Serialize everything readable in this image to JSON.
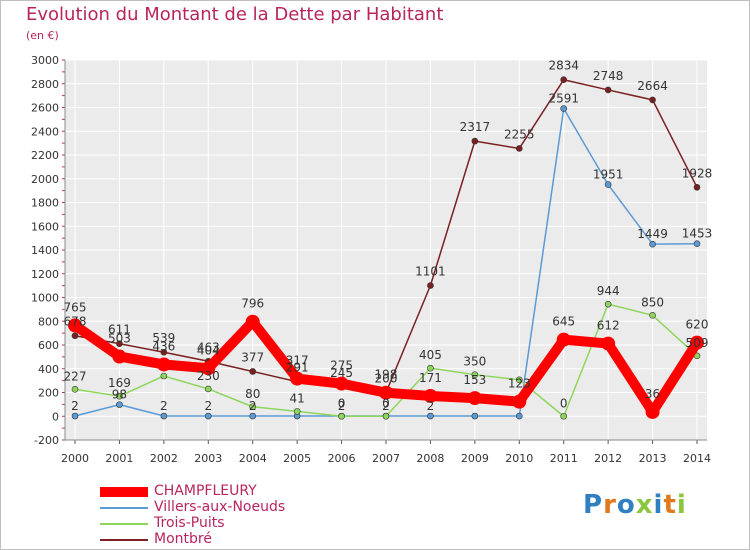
{
  "chart_data": {
    "type": "line",
    "title": "Evolution du Montant de la Dette par Habitant",
    "subtitle": "(en €)",
    "categories": [
      "2000",
      "2001",
      "2002",
      "2003",
      "2004",
      "2005",
      "2006",
      "2007",
      "2008",
      "2009",
      "2010",
      "2011",
      "2012",
      "2013",
      "2014"
    ],
    "ylim": [
      -200,
      3000
    ],
    "yticks": [
      -200,
      0,
      200,
      400,
      600,
      800,
      1000,
      1200,
      1400,
      1600,
      1800,
      2000,
      2200,
      2400,
      2600,
      2800,
      3000
    ],
    "grid": true,
    "legend_position": "bottom-left",
    "series": [
      {
        "name": "CHAMPFLEURY",
        "color": "#ff0000",
        "values": [
          765,
          503,
          436,
          404,
          796,
          317,
          275,
          198,
          171,
          153,
          123,
          645,
          612,
          36,
          620
        ],
        "labels": [
          "765",
          "503",
          "436",
          "404",
          "796",
          "317",
          "275",
          "198",
          "171",
          "153",
          "123",
          "645",
          "612",
          "36",
          "620"
        ]
      },
      {
        "name": "Villers-aux-Noeuds",
        "color": "#5b9bd5",
        "values": [
          2,
          98,
          2,
          2,
          2,
          2,
          2,
          2,
          2,
          2,
          2,
          2591,
          1951,
          1449,
          1453
        ],
        "labels": [
          "2",
          "98",
          "2",
          "2",
          "2",
          "",
          "2",
          "2",
          "2",
          "",
          "",
          "2591",
          "1951",
          "1449",
          "1453"
        ]
      },
      {
        "name": "Trois-Puits",
        "color": "#8ed65b",
        "values": [
          227,
          169,
          339,
          230,
          80,
          41,
          0,
          0,
          405,
          350,
          307,
          0,
          944,
          850,
          509
        ],
        "labels": [
          "227",
          "169",
          "",
          "230",
          "80",
          "41",
          "0",
          "0",
          "405",
          "350",
          "",
          "0",
          "944",
          "850",
          "509"
        ]
      },
      {
        "name": "Montbré",
        "color": "#7b2020",
        "values": [
          678,
          611,
          539,
          463,
          377,
          291,
          245,
          200,
          1101,
          2317,
          2255,
          2834,
          2748,
          2664,
          1928
        ],
        "labels": [
          "678",
          "611",
          "539",
          "463",
          "377",
          "291",
          "245",
          "200",
          "1101",
          "2317",
          "2255",
          "2834",
          "2748",
          "2664",
          "1928"
        ]
      }
    ]
  },
  "logo": "Proxiti"
}
